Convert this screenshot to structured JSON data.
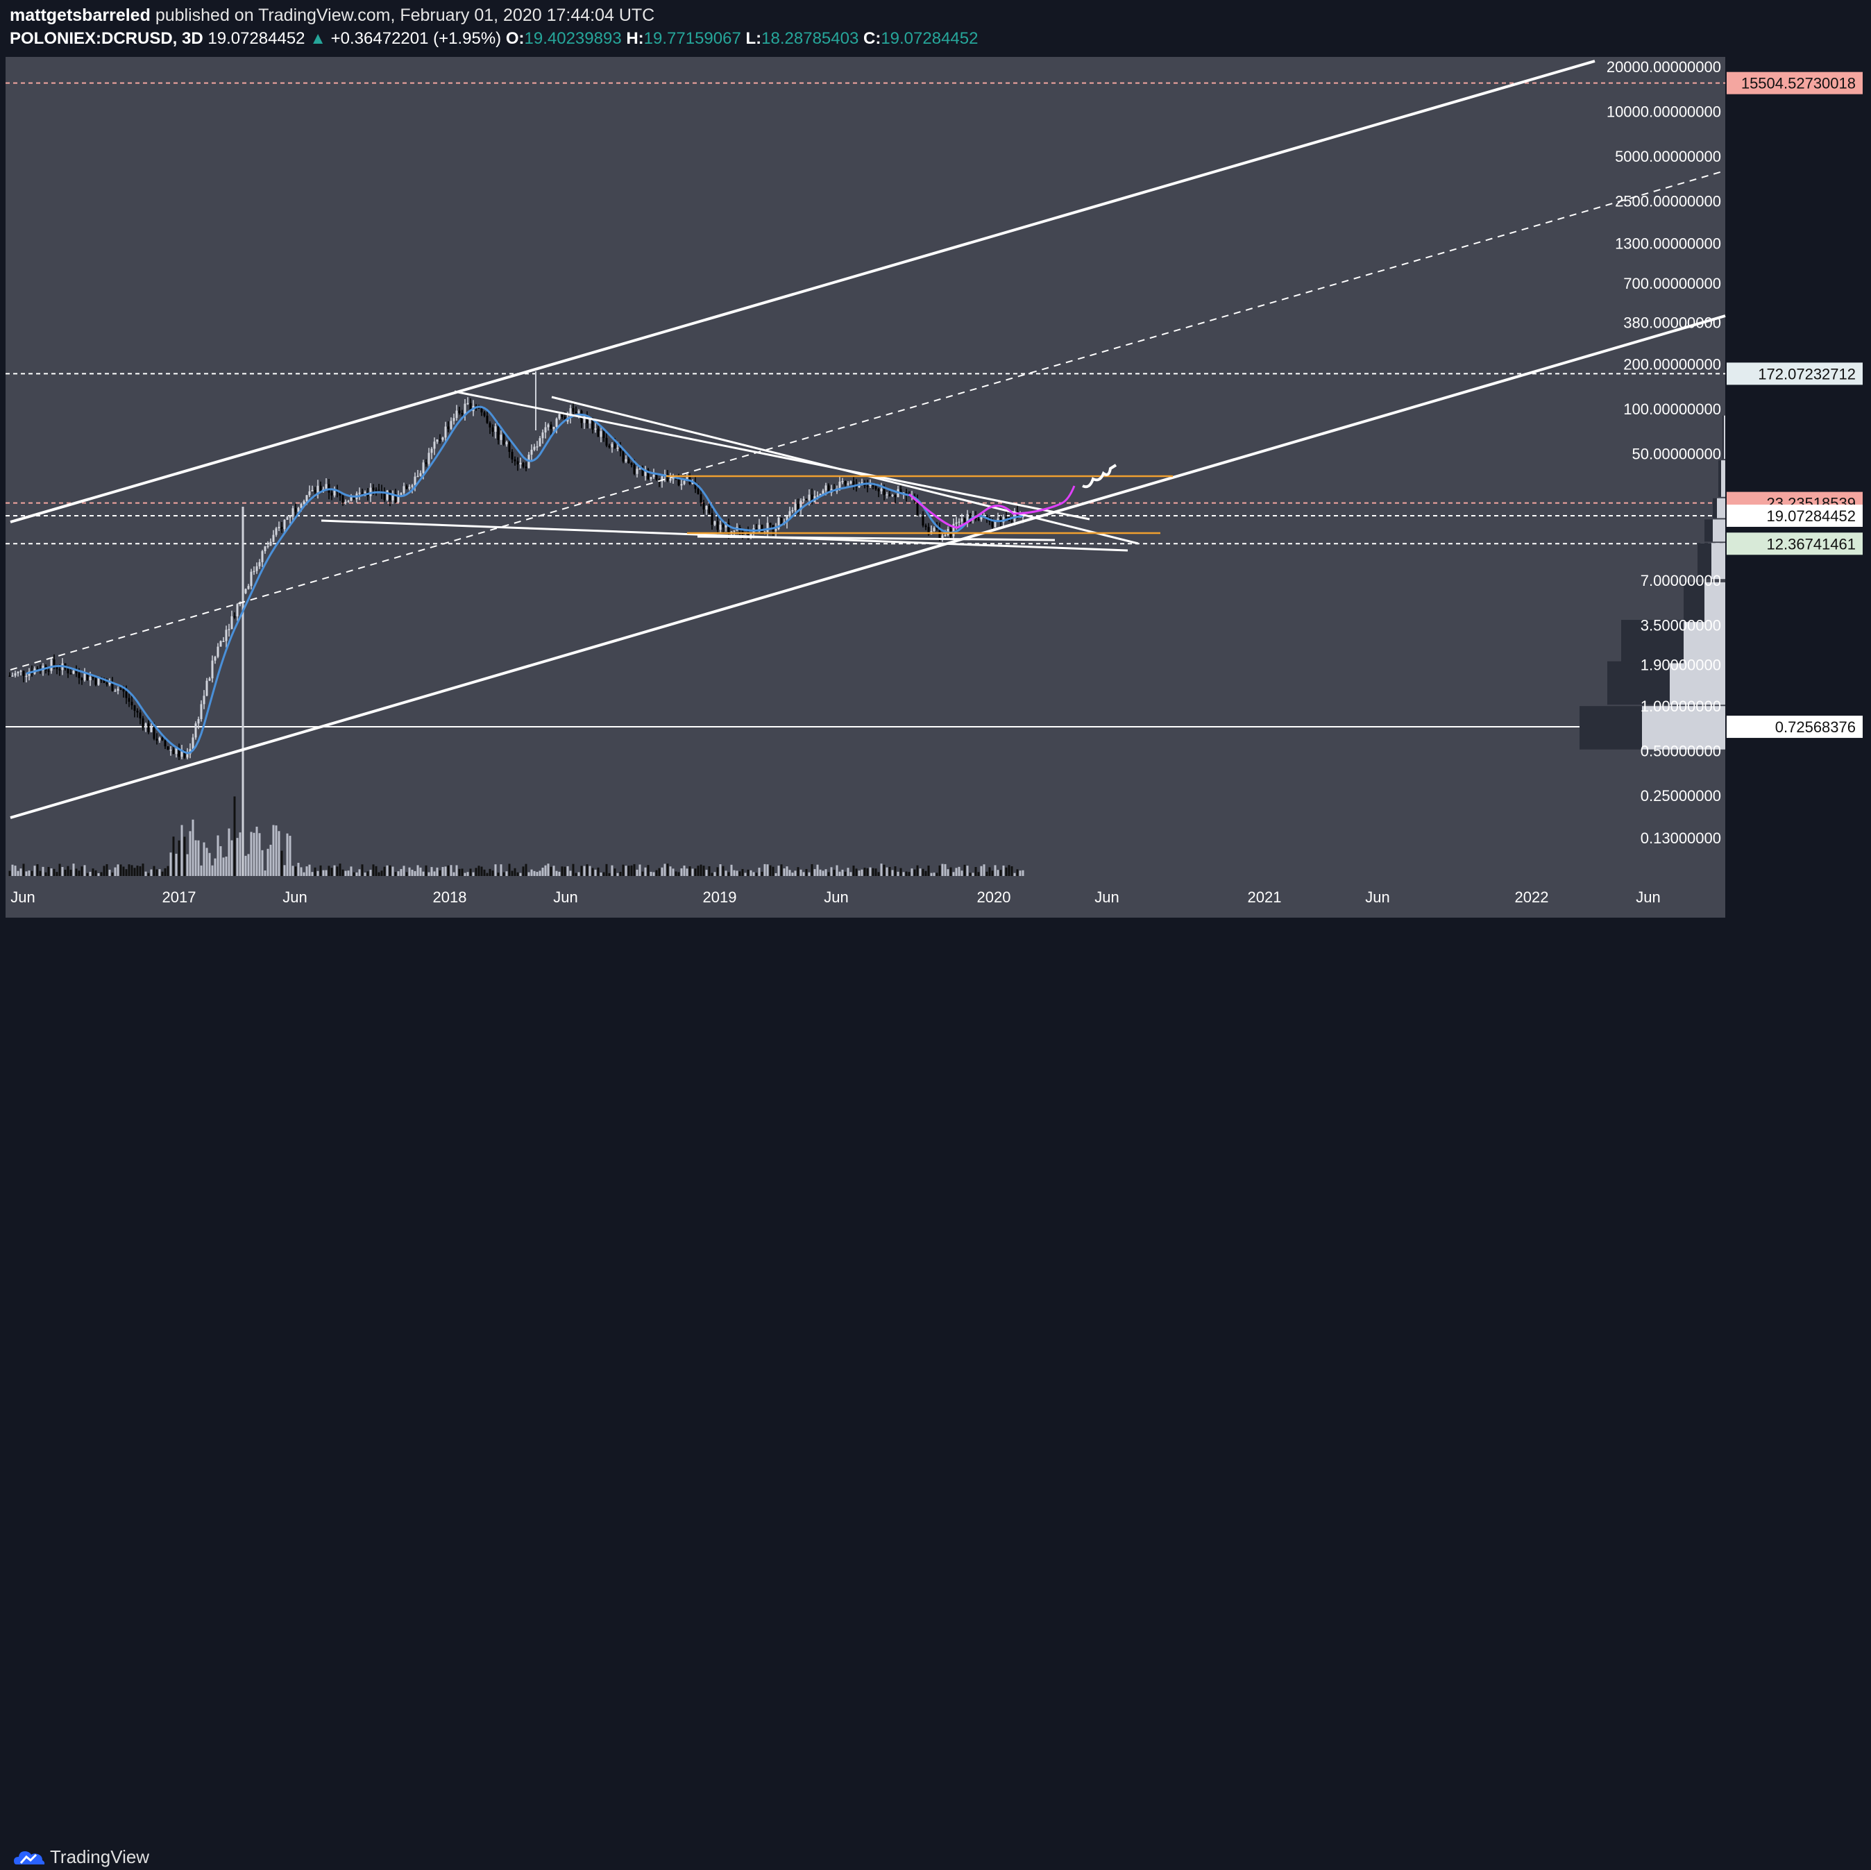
{
  "header": {
    "author": "mattgetsbarreled",
    "published_text": "published on TradingView.com, February 01, 2020 17:44:04 UTC",
    "symbol": "POLONIEX:DCRUSD, 3D",
    "last": "19.07284452",
    "change_arrow": "▲",
    "change": "+0.36472201 (+1.95%)",
    "open_label": "O:",
    "open": "19.40239893",
    "high_label": "H:",
    "high": "19.77159067",
    "low_label": "L:",
    "low": "18.28785403",
    "close_label": "C:",
    "close": "19.07284452"
  },
  "footer": {
    "brand": "TradingView"
  },
  "colors": {
    "background": "#434651",
    "up": "#d1d4dc",
    "down": "#000000",
    "ma": "#4a90d9",
    "trendline": "#ffffff",
    "orange_level": "#f0a030",
    "salmon_level": "#f4a6a0",
    "magenta_path": "#e040fb",
    "positive": "#26a69a"
  },
  "chart_data": {
    "type": "candlestick",
    "scale": "log",
    "ylim": [
      0.1,
      20000
    ],
    "x_ticks": [
      "Jun",
      "2017",
      "Jun",
      "2018",
      "Jun",
      "2019",
      "Jun",
      "2020",
      "Jun",
      "2021",
      "Jun",
      "2022",
      "Jun"
    ],
    "y_ticks": [
      20000,
      10000,
      5000,
      2500,
      1300,
      700,
      380,
      200,
      100,
      50,
      23.23518539,
      19.07284452,
      12.36741461,
      7,
      3.5,
      1.9,
      1,
      0.5,
      0.25,
      0.13
    ],
    "y_tick_labels": [
      "20000.00000000",
      "10000.00000000",
      "5000.00000000",
      "2500.00000000",
      "1300.00000000",
      "700.00000000",
      "380.00000000",
      "200.00000000",
      "100.00000000",
      "50.00000000",
      "23.23518539",
      "19.07284452",
      "12.36741461",
      "7.00000000",
      "3.50000000",
      "1.90000000",
      "1.00000000",
      "0.50000000",
      "0.25000000",
      "0.13000000"
    ],
    "price_labels": [
      {
        "value": 15504.5273,
        "label": "15504.52730018",
        "style": "salmon"
      },
      {
        "value": 172.0723,
        "label": "172.07232712",
        "style": "light"
      },
      {
        "value": 23.2352,
        "label": "23.23518539",
        "style": "salmon"
      },
      {
        "value": 19.0728,
        "label": "19.07284452",
        "style": "white"
      },
      {
        "value": 12.3674,
        "label": "12.36741461",
        "style": "green"
      },
      {
        "value": 0.7257,
        "label": "0.72568376",
        "style": "white"
      }
    ],
    "price_path": [
      [
        0,
        1.6
      ],
      [
        60,
        1.9
      ],
      [
        110,
        1.6
      ],
      [
        160,
        1.3
      ],
      [
        190,
        0.8
      ],
      [
        220,
        0.55
      ],
      [
        255,
        0.45
      ],
      [
        280,
        1.2
      ],
      [
        300,
        2.5
      ],
      [
        330,
        5
      ],
      [
        360,
        10
      ],
      [
        390,
        16
      ],
      [
        420,
        25
      ],
      [
        450,
        30
      ],
      [
        480,
        25
      ],
      [
        520,
        28
      ],
      [
        560,
        25
      ],
      [
        600,
        45
      ],
      [
        640,
        90
      ],
      [
        670,
        110
      ],
      [
        700,
        70
      ],
      [
        740,
        40
      ],
      [
        780,
        80
      ],
      [
        810,
        95
      ],
      [
        830,
        85
      ],
      [
        870,
        55
      ],
      [
        900,
        38
      ],
      [
        940,
        35
      ],
      [
        980,
        32
      ],
      [
        1000,
        22
      ],
      [
        1020,
        16
      ],
      [
        1060,
        15
      ],
      [
        1100,
        16
      ],
      [
        1130,
        22
      ],
      [
        1170,
        28
      ],
      [
        1200,
        30
      ],
      [
        1230,
        32
      ],
      [
        1260,
        28
      ],
      [
        1300,
        25
      ],
      [
        1320,
        16
      ],
      [
        1350,
        14
      ],
      [
        1380,
        20
      ],
      [
        1410,
        17
      ],
      [
        1440,
        19
      ],
      [
        1460,
        19.07
      ]
    ],
    "drawings": {
      "channel_upper": [
        [
          15,
          752
        ],
        [
          2298,
          88
        ]
      ],
      "channel_mid_dashed": [
        [
          15,
          965
        ],
        [
          2482,
          247
        ]
      ],
      "channel_lower": [
        [
          15,
          1178
        ],
        [
          2486,
          455
        ]
      ],
      "descending_trend_1": [
        [
          655,
          564
        ],
        [
          1570,
          748
        ]
      ],
      "descending_trend_2": [
        [
          795,
          572
        ],
        [
          1640,
          783
        ]
      ],
      "lower_wedge": [
        [
          463,
          750
        ],
        [
          1625,
          793
        ]
      ],
      "bottom_line": [
        [
          1005,
          773
        ],
        [
          1520,
          778
        ]
      ],
      "orange_top": [
        [
          960,
          686
        ],
        [
          1690,
          686
        ]
      ],
      "orange_bottom": [
        [
          990,
          768
        ],
        [
          1672,
          768
        ]
      ]
    },
    "volume_profile_note": "visible range volume profile on right"
  }
}
